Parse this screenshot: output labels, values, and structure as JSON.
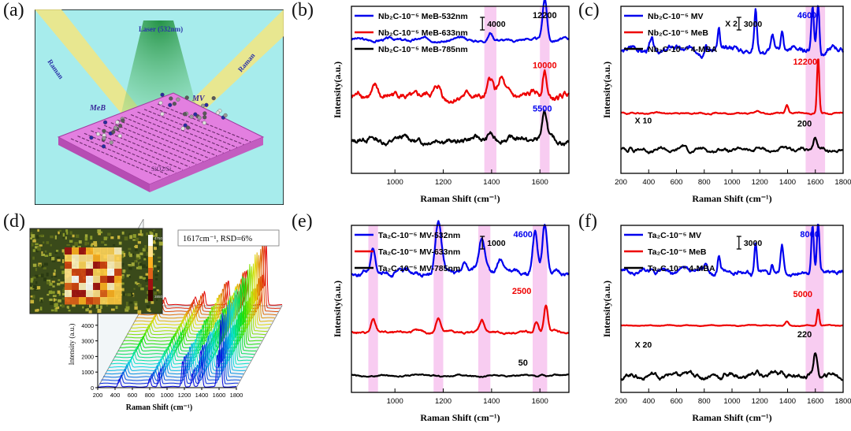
{
  "panel_labels": [
    "(a)",
    "(b)",
    "(c)",
    "(d)",
    "(e)",
    "(f)"
  ],
  "schematic": {
    "laser_label": "Laser (532nm)",
    "raman_left": "Raman",
    "raman_right": "Raman",
    "molecule_1": "MV",
    "molecule_2": "MeB",
    "substrate": "SiO2/Si",
    "colors": {
      "sky": "#a7ecec",
      "beam": "#f3e680",
      "laser": "#3fb35a",
      "substrate": "#e37fe0"
    }
  },
  "colors": {
    "blue": "#0000ee",
    "red": "#ee0000",
    "black": "#000000",
    "highlight": "#f7c6f0"
  },
  "chart_data": [
    {
      "id": "b",
      "type": "line",
      "xlabel": "Raman Shift (cm⁻¹)",
      "ylabel": "Intensity(a.u.)",
      "xlim": [
        820,
        1720
      ],
      "xticks": [
        1000,
        1200,
        1400,
        1600
      ],
      "highlight_bands": [
        [
          1370,
          1420
        ],
        [
          1600,
          1640
        ]
      ],
      "scale_bar": "4000",
      "series": [
        {
          "name": "Nb₂C-10⁻⁵ MeB-532nm",
          "color": "blue",
          "baseline": 0.8,
          "wiggle": 0.012,
          "peaks": [
            [
              1620,
              0.25,
              9
            ],
            [
              1395,
              0.04,
              8
            ],
            [
              1180,
              0.01,
              10
            ]
          ],
          "label": "12200",
          "label_color": "black",
          "label_x": 1570,
          "label_y": 0.93
        },
        {
          "name": "Nb₂C-10⁻⁵ MeB-633nm",
          "color": "red",
          "baseline": 0.46,
          "wiggle": 0.03,
          "peaks": [
            [
              1620,
              0.16,
              8
            ],
            [
              1395,
              0.1,
              12
            ],
            [
              1440,
              0.09,
              12
            ],
            [
              1180,
              0.05,
              12
            ],
            [
              920,
              0.06,
              12
            ]
          ],
          "label": "10000",
          "label_color": "red",
          "label_x": 1570,
          "label_y": 0.63
        },
        {
          "name": "Nb₂C-10⁻⁵ MeB-785nm",
          "color": "black",
          "baseline": 0.2,
          "wiggle": 0.025,
          "peaks": [
            [
              1620,
              0.14,
              10
            ],
            [
              1395,
              0.05,
              10
            ],
            [
              1530,
              0.03,
              12
            ]
          ],
          "label": "5500",
          "label_color": "blue",
          "label_x": 1570,
          "label_y": 0.37
        }
      ]
    },
    {
      "id": "c",
      "type": "line",
      "xlabel": "Raman Shift (cm⁻¹)",
      "ylabel": "Intensity(a.u.)",
      "xlim": [
        200,
        1800
      ],
      "xticks": [
        200,
        400,
        600,
        800,
        1000,
        1200,
        1400,
        1600,
        1800
      ],
      "highlight_bands": [
        [
          1530,
          1670
        ]
      ],
      "scale_bar": "3000",
      "series": [
        {
          "name": "Nb₂C-10⁻⁵ MV",
          "color": "blue",
          "baseline": 0.74,
          "wiggle": 0.025,
          "peaks": [
            [
              1620,
              0.28,
              9
            ],
            [
              1580,
              0.26,
              9
            ],
            [
              1170,
              0.23,
              9
            ],
            [
              1360,
              0.12,
              10
            ],
            [
              905,
              0.12,
              8
            ],
            [
              420,
              0.06,
              10
            ],
            [
              1290,
              0.06,
              10
            ],
            [
              810,
              0.05,
              10
            ]
          ],
          "label": "4600",
          "label_color": "blue",
          "label_x": 1470,
          "label_y": 0.93
        },
        {
          "name": "Nb₂C-10⁻⁵ MeB",
          "color": "red",
          "baseline": 0.36,
          "wiggle": 0.006,
          "peaks": [
            [
              1620,
              0.33,
              8
            ],
            [
              1395,
              0.05,
              10
            ],
            [
              1180,
              0.01,
              10
            ]
          ],
          "label": "12200",
          "label_color": "red",
          "label_x": 1440,
          "label_y": 0.65
        },
        {
          "name": "Nb₂C-10⁻⁵ 4-MBA",
          "color": "black",
          "baseline": 0.14,
          "wiggle": 0.015,
          "peaks": [
            [
              1600,
              0.07,
              12
            ],
            [
              1180,
              0.02,
              10
            ],
            [
              270,
              0.03,
              10
            ],
            [
              650,
              0.02,
              15
            ]
          ],
          "label": "200",
          "label_color": "black",
          "label_x": 1470,
          "label_y": 0.28
        }
      ],
      "annotations": [
        {
          "text": "X 2",
          "x": 950,
          "y": 0.88
        },
        {
          "text": "X 10",
          "x": 300,
          "y": 0.3
        }
      ]
    },
    {
      "id": "e",
      "type": "line",
      "xlabel": "Raman Shift (cm⁻¹)",
      "ylabel": "Intensity(a.u.)",
      "xlim": [
        820,
        1720
      ],
      "xticks": [
        1000,
        1200,
        1400,
        1600
      ],
      "highlight_bands": [
        [
          890,
          930
        ],
        [
          1160,
          1200
        ],
        [
          1345,
          1395
        ],
        [
          1570,
          1630
        ]
      ],
      "scale_bar": "1000",
      "series": [
        {
          "name": "Ta₂C-10⁻⁵ MV-532nm",
          "color": "blue",
          "baseline": 0.72,
          "wiggle": 0.02,
          "peaks": [
            [
              1620,
              0.28,
              10
            ],
            [
              1580,
              0.26,
              10
            ],
            [
              1180,
              0.3,
              12
            ],
            [
              1360,
              0.2,
              12
            ],
            [
              910,
              0.14,
              9
            ],
            [
              1290,
              0.06,
              10
            ],
            [
              1435,
              0.08,
              12
            ]
          ],
          "label": "4600",
          "label_color": "blue",
          "label_x": 1490,
          "label_y": 0.93
        },
        {
          "name": "Ta₂C-10⁻⁵ MV-633nm",
          "color": "red",
          "baseline": 0.36,
          "wiggle": 0.01,
          "peaks": [
            [
              1625,
              0.16,
              8
            ],
            [
              1585,
              0.06,
              8
            ],
            [
              1180,
              0.09,
              10
            ],
            [
              1360,
              0.07,
              10
            ],
            [
              910,
              0.07,
              9
            ]
          ],
          "label": "2500",
          "label_color": "red",
          "label_x": 1485,
          "label_y": 0.59
        },
        {
          "name": "Ta₂C-10⁻⁵ MV-785nm",
          "color": "black",
          "baseline": 0.1,
          "wiggle": 0.006,
          "peaks": [
            [
              1610,
              0.01,
              10
            ]
          ],
          "label": "50",
          "label_color": "black",
          "label_x": 1510,
          "label_y": 0.16
        }
      ]
    },
    {
      "id": "f",
      "type": "line",
      "xlabel": "Raman Shift (cm⁻¹)",
      "ylabel": "Intensity(a.u.)",
      "xlim": [
        200,
        1800
      ],
      "xticks": [
        200,
        400,
        600,
        800,
        1000,
        1200,
        1400,
        1600,
        1800
      ],
      "highlight_bands": [
        [
          1530,
          1660
        ]
      ],
      "scale_bar": "3000",
      "series": [
        {
          "name": "Ta₂C-10⁻⁵ MV",
          "color": "blue",
          "baseline": 0.72,
          "wiggle": 0.02,
          "peaks": [
            [
              1620,
              0.3,
              9
            ],
            [
              1580,
              0.28,
              9
            ],
            [
              1170,
              0.18,
              9
            ],
            [
              1360,
              0.16,
              10
            ],
            [
              905,
              0.1,
              8
            ],
            [
              1290,
              0.06,
              10
            ],
            [
              810,
              0.05,
              10
            ],
            [
              420,
              0.03,
              10
            ]
          ],
          "label": "8000",
          "label_color": "blue",
          "label_x": 1490,
          "label_y": 0.93
        },
        {
          "name": "Ta₂C-10⁻⁵ MeB",
          "color": "red",
          "baseline": 0.4,
          "wiggle": 0.003,
          "peaks": [
            [
              1620,
              0.1,
              8
            ],
            [
              1395,
              0.025,
              12
            ]
          ],
          "label": "5000",
          "label_color": "red",
          "label_x": 1440,
          "label_y": 0.57
        },
        {
          "name": "Ta₂C-10⁻⁵ 4-MBA",
          "color": "black",
          "baseline": 0.1,
          "wiggle": 0.02,
          "peaks": [
            [
              1600,
              0.14,
              12
            ],
            [
              1360,
              0.04,
              12
            ],
            [
              1180,
              0.03,
              10
            ],
            [
              950,
              0.02,
              10
            ],
            [
              650,
              0.02,
              12
            ]
          ],
          "label": "220",
          "label_color": "black",
          "label_x": 1470,
          "label_y": 0.33
        }
      ],
      "annotations": [
        {
          "text": "X 20",
          "x": 300,
          "y": 0.27
        }
      ]
    },
    {
      "id": "d",
      "type": "waterfall",
      "title": "1617cm⁻¹,   RSD=6%",
      "xlabel": "Raman Shift (cm⁻¹)",
      "ylabel": "Intensity (a.u.)",
      "xlim": [
        200,
        1800
      ],
      "xticks": [
        200,
        400,
        600,
        800,
        1000,
        1200,
        1400,
        1600,
        1800
      ],
      "ylim": [
        0,
        5000
      ],
      "yticks": [
        0,
        1000,
        2000,
        3000,
        4000,
        5000
      ],
      "n_spectra": 26,
      "peaks": [
        [
          1617,
          1.0,
          10
        ],
        [
          1580,
          0.5,
          10
        ],
        [
          1390,
          0.55,
          14
        ],
        [
          1180,
          0.4,
          12
        ],
        [
          905,
          0.22,
          10
        ],
        [
          1290,
          0.2,
          10
        ],
        [
          450,
          0.12,
          14
        ],
        [
          800,
          0.12,
          12
        ]
      ],
      "colorbar_labels": [
        "3850",
        "4750"
      ]
    }
  ]
}
